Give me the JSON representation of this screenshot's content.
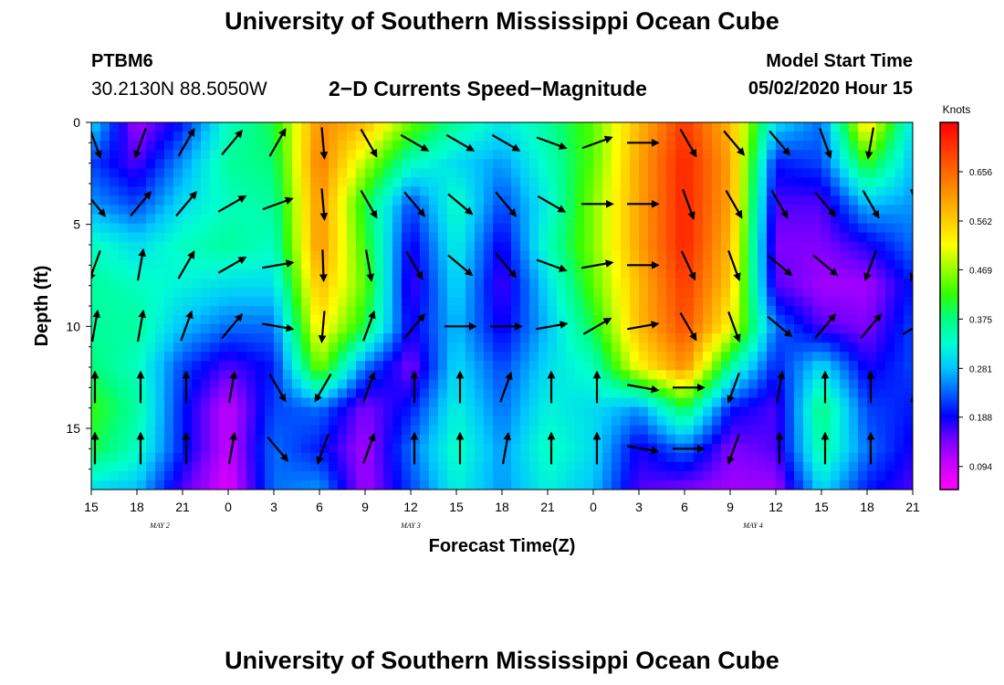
{
  "header": {
    "title": "University of Southern Mississippi Ocean Cube",
    "station_id": "PTBM6",
    "coordinates": "30.2130N 88.5050W",
    "subtitle": "2−D Currents Speed−Magnitude",
    "model_start_label": "Model Start Time",
    "model_start_value": "05/02/2020 Hour 15"
  },
  "footer": {
    "title": "University of Southern Mississippi Ocean Cube"
  },
  "chart_data": {
    "type": "heatmap",
    "title": "2−D Currents Speed−Magnitude",
    "xlabel": "Forecast Time(Z)",
    "ylabel": "Depth (ft)",
    "x_tick_labels": [
      "15",
      "18",
      "21",
      "0",
      "3",
      "6",
      "9",
      "12",
      "15",
      "18",
      "21",
      "0",
      "3",
      "6",
      "9",
      "12",
      "15",
      "18",
      "21"
    ],
    "x_hours": [
      0,
      3,
      6,
      9,
      12,
      15,
      18,
      21,
      24,
      27,
      30,
      33,
      36,
      39,
      42,
      45,
      48,
      51,
      54
    ],
    "x_range_hours": [
      0,
      54
    ],
    "date_labels": [
      {
        "label": "MAY 2",
        "hour": 4.5
      },
      {
        "label": "MAY 3",
        "hour": 21
      },
      {
        "label": "MAY 4",
        "hour": 43.5
      }
    ],
    "y_ticks": [
      0,
      5,
      10,
      15
    ],
    "y_range": [
      0,
      18
    ],
    "y_inverted": true,
    "colorbar": {
      "label": "Knots",
      "ticks": [
        0.094,
        0.188,
        0.281,
        0.375,
        0.469,
        0.562,
        0.656
      ],
      "range": [
        0.05,
        0.75
      ],
      "colors": [
        "#ff00ff",
        "#cc00ff",
        "#7a00ff",
        "#0000ff",
        "#0066ff",
        "#00c8ff",
        "#00ffd0",
        "#00ff80",
        "#33ff00",
        "#99ff00",
        "#ffff00",
        "#ffcc00",
        "#ff9900",
        "#ff6600",
        "#ff3300",
        "#ff0000"
      ]
    },
    "speed_grid": {
      "x_hours": [
        0,
        3,
        6,
        9,
        12,
        15,
        18,
        21,
        24,
        27,
        30,
        33,
        36,
        39,
        42,
        45,
        48,
        51,
        54
      ],
      "depths_ft": [
        0,
        2,
        4,
        6,
        8,
        10,
        12,
        14,
        16,
        18
      ],
      "values_knots": [
        [
          0.3,
          0.12,
          0.2,
          0.34,
          0.4,
          0.62,
          0.58,
          0.45,
          0.36,
          0.31,
          0.36,
          0.44,
          0.58,
          0.7,
          0.58,
          0.3,
          0.24,
          0.55,
          0.3
        ],
        [
          0.22,
          0.16,
          0.26,
          0.36,
          0.38,
          0.64,
          0.48,
          0.34,
          0.3,
          0.26,
          0.34,
          0.44,
          0.6,
          0.72,
          0.6,
          0.2,
          0.22,
          0.42,
          0.28
        ],
        [
          0.26,
          0.22,
          0.3,
          0.34,
          0.36,
          0.62,
          0.4,
          0.22,
          0.34,
          0.22,
          0.32,
          0.46,
          0.6,
          0.72,
          0.6,
          0.16,
          0.16,
          0.28,
          0.26
        ],
        [
          0.34,
          0.3,
          0.34,
          0.36,
          0.34,
          0.62,
          0.42,
          0.18,
          0.32,
          0.18,
          0.34,
          0.46,
          0.6,
          0.72,
          0.58,
          0.14,
          0.14,
          0.18,
          0.24
        ],
        [
          0.36,
          0.34,
          0.32,
          0.3,
          0.3,
          0.58,
          0.44,
          0.16,
          0.3,
          0.16,
          0.3,
          0.44,
          0.58,
          0.7,
          0.56,
          0.16,
          0.12,
          0.12,
          0.2
        ],
        [
          0.36,
          0.36,
          0.28,
          0.24,
          0.24,
          0.54,
          0.4,
          0.18,
          0.28,
          0.18,
          0.28,
          0.4,
          0.58,
          0.68,
          0.52,
          0.24,
          0.16,
          0.14,
          0.22
        ],
        [
          0.38,
          0.34,
          0.22,
          0.16,
          0.2,
          0.46,
          0.24,
          0.14,
          0.3,
          0.22,
          0.3,
          0.34,
          0.52,
          0.62,
          0.36,
          0.2,
          0.3,
          0.18,
          0.22
        ],
        [
          0.42,
          0.36,
          0.2,
          0.1,
          0.22,
          0.24,
          0.14,
          0.2,
          0.32,
          0.24,
          0.32,
          0.3,
          0.26,
          0.4,
          0.2,
          0.16,
          0.38,
          0.22,
          0.2
        ],
        [
          0.4,
          0.34,
          0.2,
          0.1,
          0.24,
          0.2,
          0.12,
          0.24,
          0.34,
          0.26,
          0.34,
          0.3,
          0.18,
          0.24,
          0.14,
          0.16,
          0.36,
          0.24,
          0.18
        ],
        [
          0.3,
          0.28,
          0.16,
          0.08,
          0.24,
          0.26,
          0.12,
          0.22,
          0.32,
          0.26,
          0.32,
          0.28,
          0.16,
          0.14,
          0.12,
          0.12,
          0.3,
          0.2,
          0.16
        ]
      ]
    },
    "current_vectors": {
      "x_hours": [
        0,
        3,
        6,
        9,
        12,
        15,
        18,
        21,
        24,
        27,
        30,
        33,
        36,
        39,
        42,
        45,
        48,
        51,
        54
      ],
      "depths_ft": [
        1,
        4,
        7,
        10,
        13,
        16
      ],
      "direction_deg": [
        [
          160,
          200,
          30,
          40,
          30,
          175,
          150,
          120,
          120,
          120,
          110,
          70,
          90,
          150,
          140,
          140,
          160,
          190,
          180
        ],
        [
          140,
          40,
          40,
          60,
          70,
          175,
          150,
          140,
          130,
          140,
          120,
          90,
          90,
          160,
          150,
          150,
          140,
          150,
          160
        ],
        [
          200,
          10,
          30,
          60,
          80,
          178,
          170,
          150,
          130,
          140,
          110,
          80,
          90,
          155,
          160,
          130,
          130,
          200,
          200
        ],
        [
          10,
          10,
          20,
          40,
          100,
          185,
          20,
          40,
          90,
          90,
          80,
          60,
          80,
          150,
          160,
          130,
          40,
          40,
          60
        ],
        [
          0,
          0,
          0,
          10,
          150,
          210,
          20,
          0,
          0,
          20,
          0,
          0,
          100,
          90,
          200,
          10,
          0,
          0,
          20
        ],
        [
          0,
          0,
          0,
          10,
          140,
          200,
          20,
          0,
          0,
          10,
          0,
          0,
          100,
          90,
          200,
          0,
          0,
          0,
          0
        ]
      ]
    }
  }
}
